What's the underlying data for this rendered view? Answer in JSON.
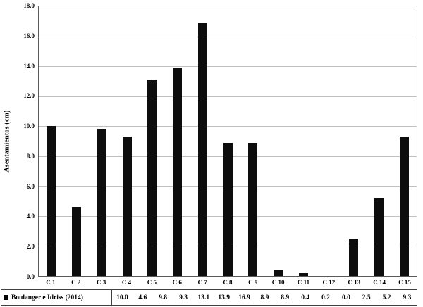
{
  "chart_data": {
    "type": "bar",
    "title": "",
    "xlabel": "",
    "ylabel": "Asentamientos (cm)",
    "ylim": [
      0,
      18
    ],
    "ytick_step": 2,
    "grid": true,
    "legend_position": "bottom-table",
    "bar_color": "#0d0d0d",
    "categories": [
      "C 1",
      "C 2",
      "C 3",
      "C 4",
      "C 5",
      "C 6",
      "C 7",
      "C 8",
      "C 9",
      "C 10",
      "C 11",
      "C 12",
      "C 13",
      "C 14",
      "C 15"
    ],
    "series": [
      {
        "name": "Boulanger e Idriss (2014)",
        "values": [
          10.0,
          4.6,
          9.8,
          9.3,
          13.1,
          13.9,
          16.9,
          8.9,
          8.9,
          0.4,
          0.2,
          0.0,
          2.5,
          5.2,
          9.3
        ]
      }
    ]
  },
  "legend": {
    "marker": "■"
  }
}
